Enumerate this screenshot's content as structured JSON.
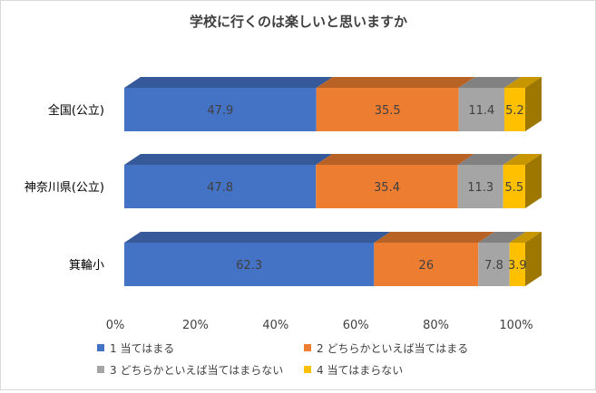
{
  "chart_data": {
    "type": "bar",
    "orientation": "horizontal",
    "stacked": "percent",
    "style": "3d",
    "title": "学校に行くのは楽しいと思いますか",
    "categories": [
      "全国(公立)",
      "神奈川県(公立)",
      "箕輪小"
    ],
    "series": [
      {
        "name": "1 当てはまる",
        "color": "#4472C4",
        "values": [
          47.9,
          47.8,
          62.3
        ]
      },
      {
        "name": "2 どちらかといえば当てはまる",
        "color": "#ED7D31",
        "values": [
          35.5,
          35.4,
          26
        ]
      },
      {
        "name": "3 どちらかといえば当てはまらない",
        "color": "#A5A5A5",
        "values": [
          11.4,
          11.3,
          7.8
        ]
      },
      {
        "name": "4 当てはまらない",
        "color": "#FFC000",
        "values": [
          5.2,
          5.5,
          3.9
        ]
      }
    ],
    "x_ticks": [
      "0%",
      "20%",
      "40%",
      "60%",
      "80%",
      "100%"
    ],
    "xlim": [
      0,
      100
    ],
    "grid": false,
    "legend_position": "bottom"
  }
}
